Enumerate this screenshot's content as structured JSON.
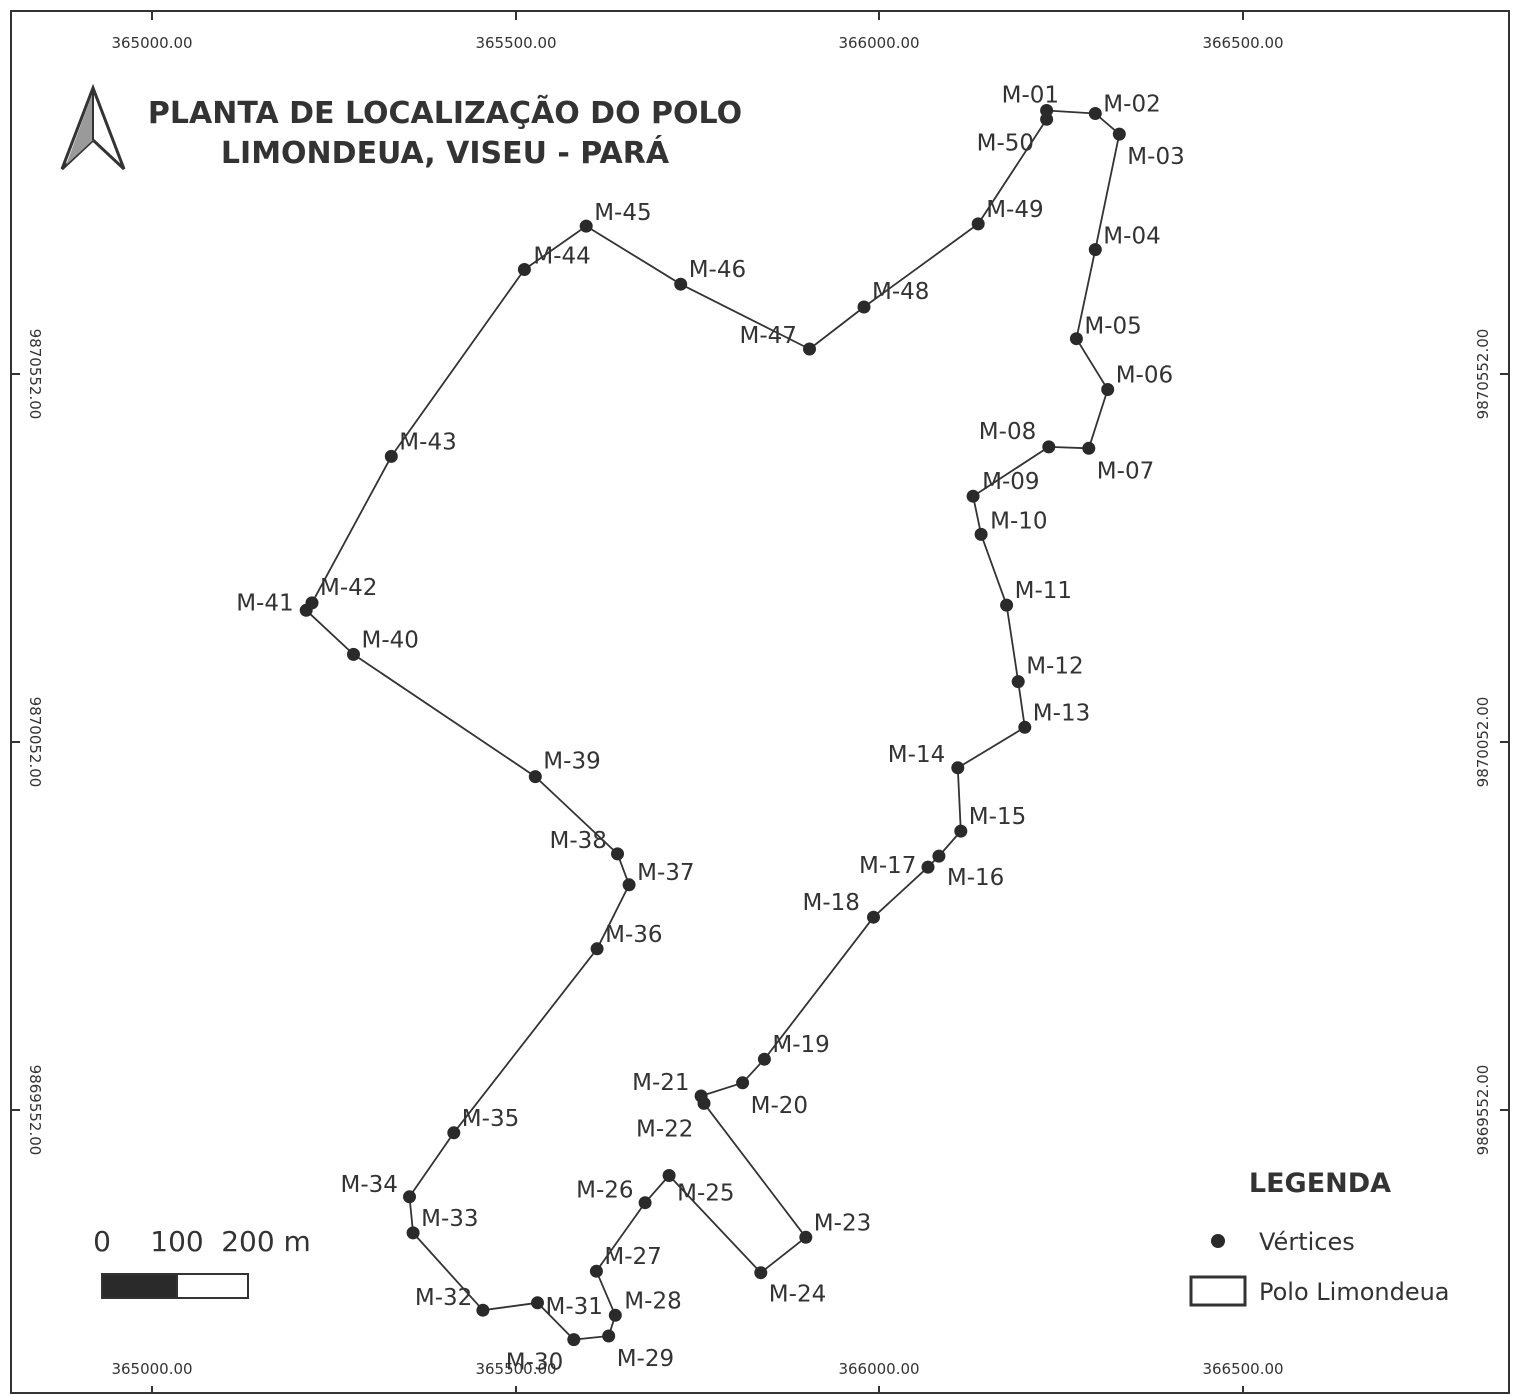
{
  "title": {
    "line1": "PLANTA DE LOCALIZAÇÃO DO POLO",
    "line2": "LIMONDEUA, VISEU - PARÁ"
  },
  "grid": {
    "x_labels": [
      "365000.00",
      "365500.00",
      "366000.00",
      "366500.00"
    ],
    "y_labels": [
      "9870552.00",
      "9870052.00",
      "9869552.00"
    ]
  },
  "scale_bar": {
    "labels": [
      "0",
      "100",
      "200 m"
    ]
  },
  "legend": {
    "title": "LEGENDA",
    "items": [
      {
        "label": "Vértices",
        "symbol": "dot"
      },
      {
        "label": "Polo Limondeua",
        "symbol": "rect"
      }
    ]
  },
  "colors": {
    "line": "#333333",
    "vertex": "#2a2a2a",
    "text": "#333333"
  },
  "vertices": [
    {
      "label": "M-01",
      "x": 366230,
      "y": 9870910
    },
    {
      "label": "M-02",
      "x": 366297,
      "y": 9870906
    },
    {
      "label": "M-03",
      "x": 366330,
      "y": 9870878
    },
    {
      "label": "M-04",
      "x": 366297,
      "y": 9870721
    },
    {
      "label": "M-05",
      "x": 366271,
      "y": 9870600
    },
    {
      "label": "M-06",
      "x": 366314,
      "y": 9870531
    },
    {
      "label": "M-07",
      "x": 366288,
      "y": 9870451
    },
    {
      "label": "M-08",
      "x": 366233,
      "y": 9870453
    },
    {
      "label": "M-09",
      "x": 366129,
      "y": 9870386
    },
    {
      "label": "M-10",
      "x": 366140,
      "y": 9870334
    },
    {
      "label": "M-11",
      "x": 366175,
      "y": 9870238
    },
    {
      "label": "M-12",
      "x": 366191,
      "y": 9870134
    },
    {
      "label": "M-13",
      "x": 366200,
      "y": 9870072
    },
    {
      "label": "M-14",
      "x": 366108,
      "y": 9870017
    },
    {
      "label": "M-15",
      "x": 366112,
      "y": 9869931
    },
    {
      "label": "M-16",
      "x": 366082,
      "y": 9869897
    },
    {
      "label": "M-17",
      "x": 366067,
      "y": 9869882
    },
    {
      "label": "M-18",
      "x": 365992,
      "y": 9869814
    },
    {
      "label": "M-19",
      "x": 365842,
      "y": 9869621
    },
    {
      "label": "M-20",
      "x": 365812,
      "y": 9869589
    },
    {
      "label": "M-21",
      "x": 365755,
      "y": 9869571
    },
    {
      "label": "M-22",
      "x": 365759,
      "y": 9869561
    },
    {
      "label": "M-23",
      "x": 365899,
      "y": 9869379
    },
    {
      "label": "M-24",
      "x": 365837,
      "y": 9869331
    },
    {
      "label": "M-25",
      "x": 365711,
      "y": 9869463
    },
    {
      "label": "M-26",
      "x": 365678,
      "y": 9869426
    },
    {
      "label": "M-27",
      "x": 365611,
      "y": 9869333
    },
    {
      "label": "M-28",
      "x": 365637,
      "y": 9869273
    },
    {
      "label": "M-29",
      "x": 365628,
      "y": 9869245
    },
    {
      "label": "M-30",
      "x": 365580,
      "y": 9869240
    },
    {
      "label": "M-31",
      "x": 365530,
      "y": 9869290
    },
    {
      "label": "M-32",
      "x": 365455,
      "y": 9869280
    },
    {
      "label": "M-33",
      "x": 365359,
      "y": 9869385
    },
    {
      "label": "M-34",
      "x": 365354,
      "y": 9869434
    },
    {
      "label": "M-35",
      "x": 365415,
      "y": 9869521
    },
    {
      "label": "M-36",
      "x": 365612,
      "y": 9869771
    },
    {
      "label": "M-37",
      "x": 365656,
      "y": 9869858
    },
    {
      "label": "M-38",
      "x": 365640,
      "y": 9869900
    },
    {
      "label": "M-39",
      "x": 365527,
      "y": 9870005
    },
    {
      "label": "M-40",
      "x": 365277,
      "y": 9870171
    },
    {
      "label": "M-41",
      "x": 365212,
      "y": 9870231
    },
    {
      "label": "M-42",
      "x": 365220,
      "y": 9870241
    },
    {
      "label": "M-43",
      "x": 365329,
      "y": 9870440
    },
    {
      "label": "M-44",
      "x": 365512,
      "y": 9870694
    },
    {
      "label": "M-45",
      "x": 365597,
      "y": 9870753
    },
    {
      "label": "M-46",
      "x": 365727,
      "y": 9870674
    },
    {
      "label": "M-47",
      "x": 365904,
      "y": 9870586
    },
    {
      "label": "M-48",
      "x": 365979,
      "y": 9870643
    },
    {
      "label": "M-49",
      "x": 366136,
      "y": 9870756
    },
    {
      "label": "M-50",
      "x": 366230,
      "y": 9870898
    }
  ]
}
